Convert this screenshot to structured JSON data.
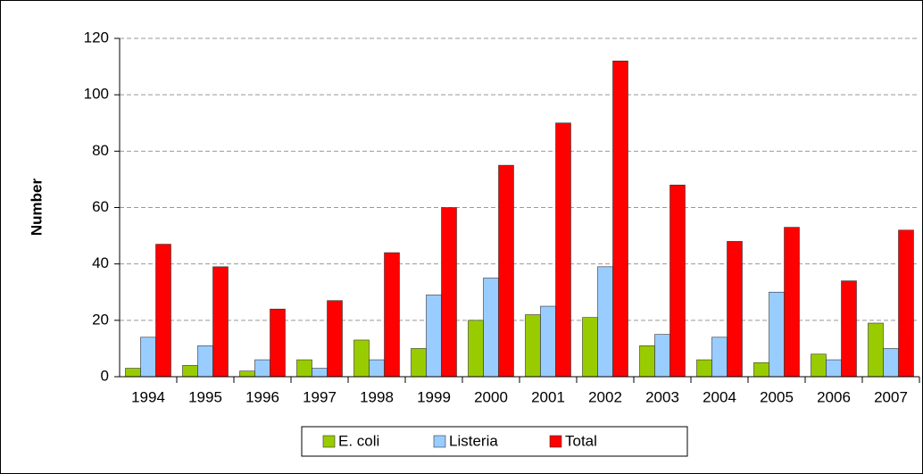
{
  "chart_data": {
    "type": "bar",
    "ylabel": "Number",
    "categories": [
      "1994",
      "1995",
      "1996",
      "1997",
      "1998",
      "1999",
      "2000",
      "2001",
      "2002",
      "2003",
      "2004",
      "2005",
      "2006",
      "2007"
    ],
    "series": [
      {
        "name": "E. coli",
        "color": "#99cc00",
        "values": [
          3,
          4,
          2,
          6,
          13,
          10,
          20,
          22,
          21,
          11,
          6,
          5,
          8,
          19
        ]
      },
      {
        "name": "Listeria",
        "color": "#99ccff",
        "values": [
          14,
          11,
          6,
          3,
          6,
          29,
          35,
          25,
          39,
          15,
          14,
          30,
          6,
          10
        ]
      },
      {
        "name": "Total",
        "color": "#ff0000",
        "values": [
          47,
          39,
          24,
          27,
          44,
          60,
          75,
          90,
          112,
          68,
          48,
          53,
          34,
          52
        ]
      }
    ],
    "ylim": [
      0,
      120
    ],
    "yticks": [
      0,
      20,
      40,
      60,
      80,
      100,
      120
    ],
    "grid": true,
    "legend": "bottom"
  }
}
